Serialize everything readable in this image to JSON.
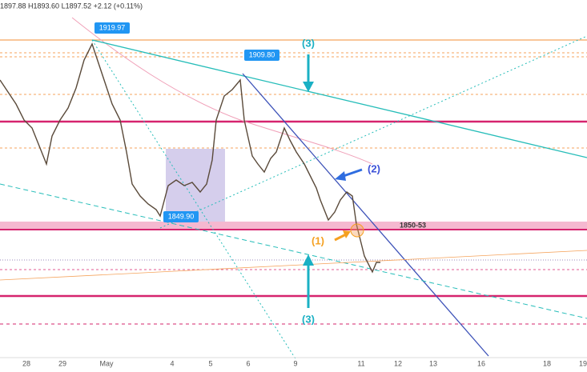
{
  "header": {
    "ohlc": "1897.88  H1893.60  L1897.52  +2.12 (+0.11%)"
  },
  "price_labels": [
    "1919.97",
    "1909.80",
    "1849.90"
  ],
  "zone_label": "1850-53",
  "annotations": {
    "one": "(1)",
    "two": "(2)",
    "three_top": "(3)",
    "three_bottom": "(3)"
  },
  "x_axis": [
    "28",
    "29",
    "May",
    "4",
    "5",
    "6",
    "9",
    "11",
    "12",
    "13",
    "16",
    "18",
    "19"
  ]
}
